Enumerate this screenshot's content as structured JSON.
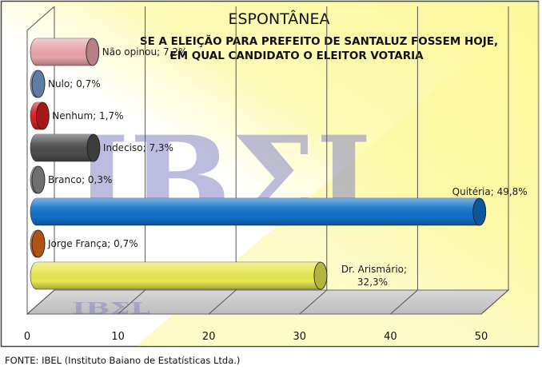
{
  "chart_data": {
    "type": "bar",
    "orientation": "horizontal",
    "title": "ESPONTÂNEA",
    "subtitle_lines": [
      "SE A ELEIÇÃO PARA PREFEITO DE SANTALUZ FOSSEM HOJE,",
      "EM QUAL CANDIDATO O ELEITOR VOTARIA"
    ],
    "xlim": [
      0,
      50
    ],
    "x_ticks": [
      "0",
      "10",
      "20",
      "30",
      "40",
      "50"
    ],
    "grid": true,
    "watermark": "IBΣL",
    "bars": [
      {
        "name": "Não opinou",
        "value": 7.2,
        "label": "Não opinou; 7,2%",
        "color": "#e8a3aa"
      },
      {
        "name": "Nulo",
        "value": 0.7,
        "label": "Nulo; 0,7%",
        "color": "#7b9fcf"
      },
      {
        "name": "Nenhum",
        "value": 1.7,
        "label": "Nenhum; 1,7%",
        "color": "#d42020"
      },
      {
        "name": "Indeciso",
        "value": 7.3,
        "label": "Indeciso; 7,3%",
        "color": "#4d4d4d"
      },
      {
        "name": "Branco",
        "value": 0.3,
        "label": "Branco; 0,3%",
        "color": "#8f8f8f"
      },
      {
        "name": "Quitéria",
        "value": 49.8,
        "label": "Quitéria; 49,8%",
        "color": "#1170c8"
      },
      {
        "name": "Jorge França",
        "value": 0.7,
        "label": "Jorge França; 0,7%",
        "color": "#e06a1c"
      },
      {
        "name": "Dr. Arismário",
        "value": 32.3,
        "label_lines": [
          "Dr. Arismário;",
          "32,3%"
        ],
        "color": "#e6e650"
      }
    ]
  },
  "footer": {
    "source": "FONTE: IBEL (Instituto Baiano de Estatísticas Ltda.)"
  }
}
